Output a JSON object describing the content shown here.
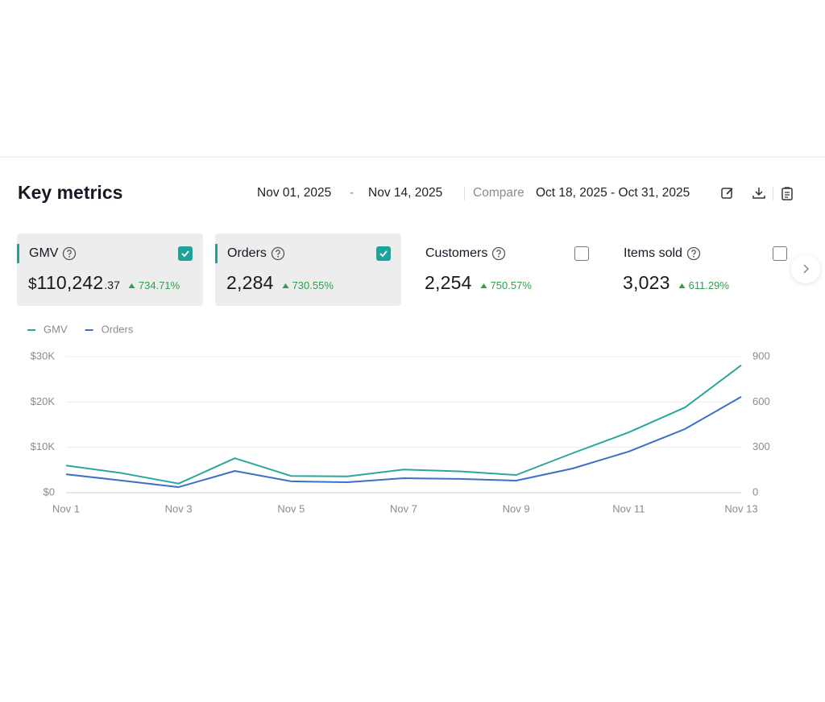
{
  "header": {
    "title": "Key metrics",
    "date_start": "Nov 01, 2025",
    "date_separator": "-",
    "date_end": "Nov 14, 2025",
    "compare_label": "Compare",
    "compare_range": "Oct 18, 2025 - Oct 31, 2025"
  },
  "metrics": [
    {
      "label": "GMV",
      "value_prefix": "$",
      "value": "110,242",
      "value_suffix": ".37",
      "change": "734.71%",
      "selected": true
    },
    {
      "label": "Orders",
      "value": "2,284",
      "change": "730.55%",
      "selected": true
    },
    {
      "label": "Customers",
      "value": "2,254",
      "change": "750.57%",
      "selected": false
    },
    {
      "label": "Items sold",
      "value": "3,023",
      "change": "611.29%",
      "selected": false
    }
  ],
  "chart_data": {
    "type": "line",
    "categories": [
      "Nov 1",
      null,
      "Nov 3",
      null,
      "Nov 5",
      null,
      "Nov 7",
      null,
      "Nov 9",
      null,
      "Nov 11",
      null,
      "Nov 13"
    ],
    "series": [
      {
        "name": "GMV",
        "color": "#2aa79b",
        "values": [
          6000,
          4300,
          2000,
          7600,
          3700,
          3600,
          5100,
          4700,
          3900,
          8700,
          13300,
          18800,
          28100
        ]
      },
      {
        "name": "Orders",
        "color": "#3d6fc6",
        "axis": "y2",
        "values": [
          122,
          80,
          37,
          144,
          75,
          69,
          96,
          91,
          80,
          160,
          272,
          421,
          634
        ]
      }
    ],
    "ylim": [
      0,
      30000
    ],
    "yticks": [
      {
        "value": 0,
        "label": "$0"
      },
      {
        "value": 10000,
        "label": "$10K"
      },
      {
        "value": 20000,
        "label": "$20K"
      },
      {
        "value": 30000,
        "label": "$30K"
      }
    ],
    "y2lim": [
      0,
      900
    ],
    "y2ticks": [
      0,
      300,
      600,
      900
    ],
    "grid": true,
    "legend": "top-left"
  }
}
